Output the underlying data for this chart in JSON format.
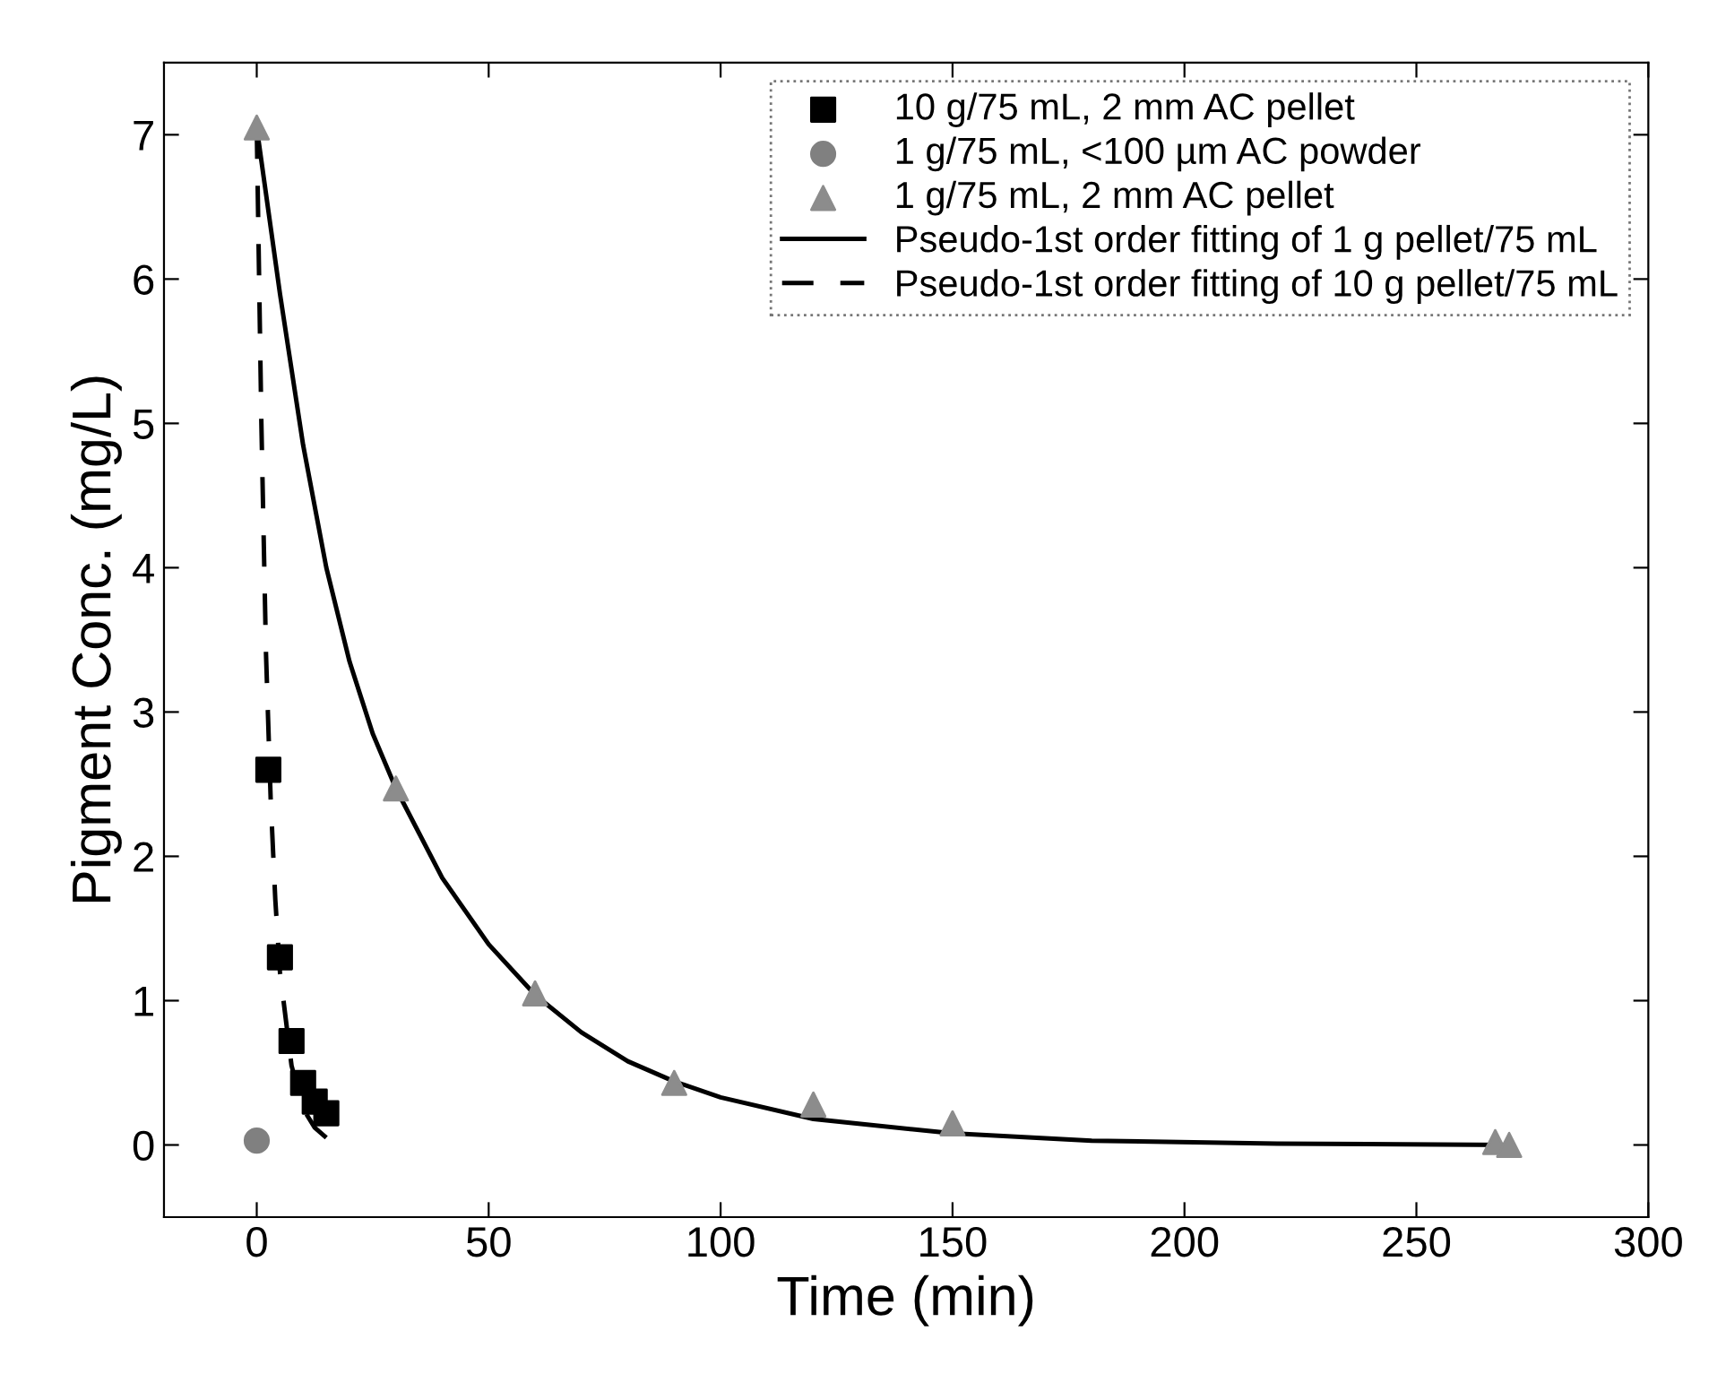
{
  "chart_data": {
    "type": "scatter",
    "xlabel": "Time (min)",
    "ylabel": "Pigment Conc. (mg/L)",
    "xlim": [
      -20,
      300
    ],
    "ylim": [
      -0.5,
      7.5
    ],
    "xticks": [
      0,
      50,
      100,
      150,
      200,
      250,
      300
    ],
    "yticks": [
      0,
      1,
      2,
      3,
      4,
      5,
      6,
      7
    ],
    "legend": "top right",
    "grid": false,
    "series": [
      {
        "name": "10 g/75 mL, 2 mm AC pellet",
        "marker": "square",
        "color": "#000000",
        "x": [
          2.5,
          5,
          7.5,
          10,
          12.5,
          15
        ],
        "values": [
          2.6,
          1.3,
          0.72,
          0.43,
          0.3,
          0.22
        ]
      },
      {
        "name": "1 g/75 mL, <100 µm AC powder",
        "marker": "circle",
        "color": "#808080",
        "x": [
          0
        ],
        "values": [
          0.03
        ]
      },
      {
        "name": "1 g/75 mL, 2 mm AC pellet",
        "marker": "triangle",
        "color": "#8c8c8c",
        "x": [
          0,
          30,
          60,
          90,
          120,
          150,
          267,
          270
        ],
        "values": [
          7.05,
          2.47,
          1.05,
          0.43,
          0.28,
          0.15,
          0.02,
          0.0
        ]
      },
      {
        "name": "Pseudo-1st order fitting of 1 g pellet/75 mL",
        "type": "line",
        "line_style": "solid",
        "color": "#000000",
        "x": [
          0,
          5,
          10,
          15,
          20,
          25,
          30,
          40,
          50,
          60,
          70,
          80,
          90,
          100,
          120,
          150,
          180,
          220,
          270
        ],
        "values": [
          7.05,
          5.9,
          4.85,
          4.0,
          3.35,
          2.85,
          2.47,
          1.85,
          1.39,
          1.04,
          0.78,
          0.58,
          0.44,
          0.33,
          0.18,
          0.08,
          0.03,
          0.01,
          0.0
        ]
      },
      {
        "name": "Pseudo-1st order fitting of 10 g pellet/75 mL",
        "type": "line",
        "line_style": "dashed",
        "color": "#000000",
        "x": [
          0,
          1,
          2,
          3,
          4,
          5,
          7.5,
          10,
          12.5,
          15
        ],
        "values": [
          7.05,
          5.0,
          3.4,
          2.4,
          1.7,
          1.2,
          0.55,
          0.25,
          0.12,
          0.05
        ]
      }
    ]
  }
}
